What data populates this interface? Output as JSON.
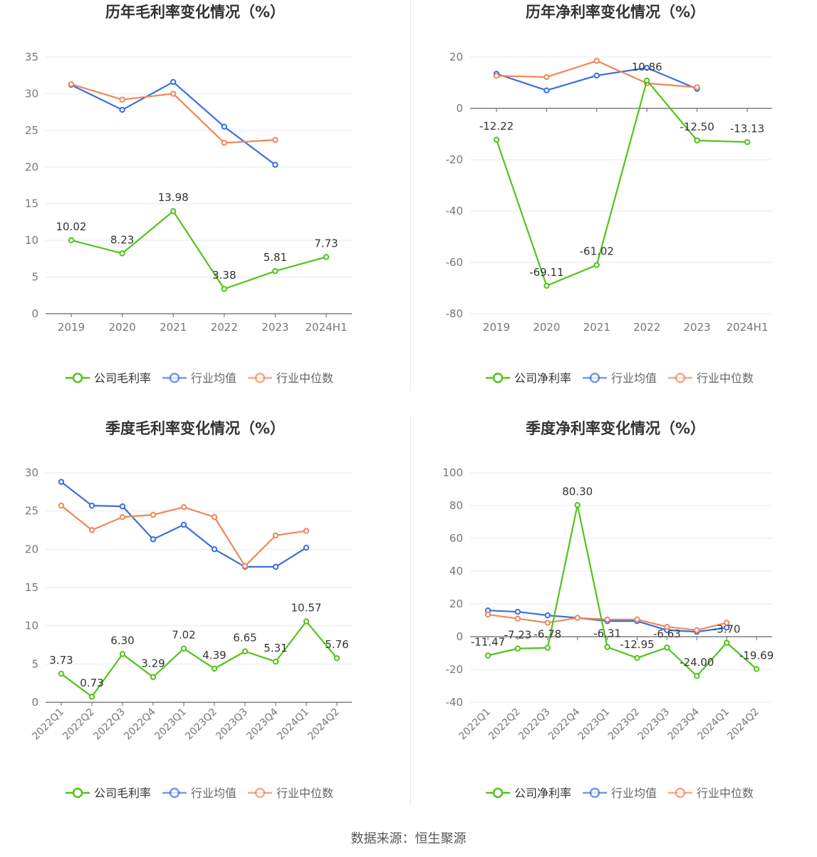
{
  "source": "数据来源：恒生聚源",
  "colors": {
    "company": "#52c41a",
    "avg": "#3b6fdb",
    "median": "#f0875a"
  },
  "chart_data": [
    {
      "type": "line",
      "title": "历年毛利率变化情况（%）",
      "categories": [
        "2019",
        "2020",
        "2021",
        "2022",
        "2023",
        "2024H1"
      ],
      "ylim": [
        0,
        35
      ],
      "yticks": [
        0,
        5,
        10,
        15,
        20,
        25,
        30,
        35
      ],
      "yticks_label": [
        "0",
        "5",
        "10",
        "15",
        "20",
        "25",
        "30",
        "35"
      ],
      "legend": [
        "公司毛利率",
        "行业均值",
        "行业中位数"
      ],
      "series": [
        {
          "name": "公司毛利率",
          "values": [
            10.02,
            8.23,
            13.98,
            3.38,
            5.81,
            7.73
          ],
          "labels": [
            "10.02",
            "8.23",
            "13.98",
            "3.38",
            "5.81",
            "7.73"
          ]
        },
        {
          "name": "行业均值",
          "values": [
            31.2,
            27.8,
            31.6,
            25.5,
            20.3,
            null
          ]
        },
        {
          "name": "行业中位数",
          "values": [
            31.3,
            29.2,
            30.0,
            23.3,
            23.7,
            null
          ]
        }
      ]
    },
    {
      "type": "line",
      "title": "历年净利率变化情况（%）",
      "categories": [
        "2019",
        "2020",
        "2021",
        "2022",
        "2023",
        "2024H1"
      ],
      "ylim": [
        -80,
        20
      ],
      "yticks": [
        -80,
        -60,
        -40,
        -20,
        0,
        20
      ],
      "yticks_label": [
        "-80",
        "-60",
        "-40",
        "-20",
        "0",
        "20"
      ],
      "legend": [
        "公司净利率",
        "行业均值",
        "行业中位数"
      ],
      "series": [
        {
          "name": "公司净利率",
          "values": [
            -12.22,
            -69.11,
            -61.02,
            10.86,
            -12.5,
            -13.13
          ],
          "labels": [
            "-12.22",
            "-69.11",
            "-61.02",
            "10.86",
            "-12.50",
            "-13.13"
          ]
        },
        {
          "name": "行业均值",
          "values": [
            13.5,
            7.0,
            12.8,
            15.8,
            7.6,
            null
          ]
        },
        {
          "name": "行业中位数",
          "values": [
            12.7,
            12.2,
            18.5,
            9.8,
            8.2,
            null
          ]
        }
      ]
    },
    {
      "type": "line",
      "title": "季度毛利率变化情况（%）",
      "categories": [
        "2022Q1",
        "2022Q2",
        "2022Q3",
        "2022Q4",
        "2023Q1",
        "2023Q2",
        "2023Q3",
        "2023Q4",
        "2024Q1",
        "2024Q2"
      ],
      "ylim": [
        0,
        30
      ],
      "yticks": [
        0,
        5,
        10,
        15,
        20,
        25,
        30
      ],
      "yticks_label": [
        "0",
        "5",
        "10",
        "15",
        "20",
        "25",
        "30"
      ],
      "legend": [
        "公司毛利率",
        "行业均值",
        "行业中位数"
      ],
      "series": [
        {
          "name": "公司毛利率",
          "values": [
            3.73,
            0.73,
            6.3,
            3.29,
            7.02,
            4.39,
            6.65,
            5.31,
            10.57,
            5.76
          ],
          "labels": [
            "3.73",
            "0.73",
            "6.30",
            "3.29",
            "7.02",
            "4.39",
            "6.65",
            "5.31",
            "10.57",
            "5.76"
          ]
        },
        {
          "name": "行业均值",
          "values": [
            28.8,
            25.7,
            25.6,
            21.3,
            23.2,
            20.0,
            17.7,
            17.7,
            20.2,
            null
          ]
        },
        {
          "name": "行业中位数",
          "values": [
            25.7,
            22.5,
            24.2,
            24.5,
            25.5,
            24.2,
            17.8,
            21.8,
            22.4,
            null
          ]
        }
      ]
    },
    {
      "type": "line",
      "title": "季度净利率变化情况（%）",
      "categories": [
        "2022Q1",
        "2022Q2",
        "2022Q3",
        "2022Q4",
        "2023Q1",
        "2023Q2",
        "2023Q3",
        "2023Q4",
        "2024Q1",
        "2024Q2"
      ],
      "ylim": [
        -40,
        100
      ],
      "yticks": [
        -40,
        -20,
        0,
        20,
        40,
        60,
        80,
        100
      ],
      "yticks_label": [
        "-40",
        "-20",
        "0",
        "20",
        "40",
        "60",
        "80",
        "100"
      ],
      "legend": [
        "公司净利率",
        "行业均值",
        "行业中位数"
      ],
      "series": [
        {
          "name": "公司净利率",
          "values": [
            -11.47,
            -7.23,
            -6.78,
            80.3,
            -6.31,
            -12.95,
            -6.63,
            -24.0,
            -3.7,
            -19.69
          ],
          "labels": [
            "-11.47",
            "-7.23",
            "-6.78",
            "80.30",
            "-6.31",
            "-12.95",
            "-6.63",
            "-24.00",
            "-3.70",
            "-19.69"
          ]
        },
        {
          "name": "行业均值",
          "values": [
            16.0,
            15.2,
            13.0,
            11.5,
            9.5,
            9.5,
            4.0,
            3.0,
            5.5,
            null
          ]
        },
        {
          "name": "行业中位数",
          "values": [
            13.5,
            11.0,
            8.5,
            11.5,
            10.5,
            10.5,
            6.0,
            4.0,
            8.5,
            null
          ]
        }
      ]
    }
  ]
}
